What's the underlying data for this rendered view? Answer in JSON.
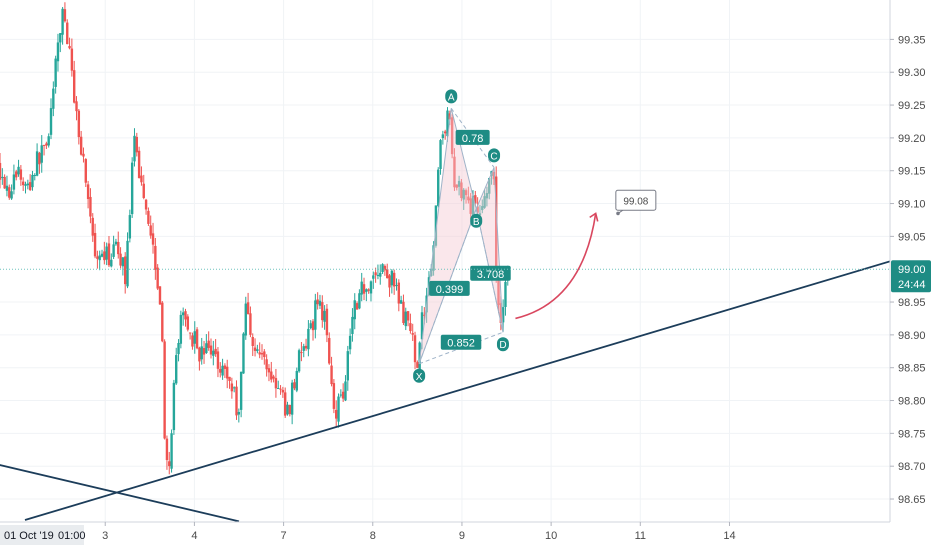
{
  "chart_data": {
    "type": "candlestick",
    "title": "",
    "xlabel": "",
    "ylabel": "",
    "ylim": [
      98.615,
      99.41
    ],
    "y_ticks": [
      "99.35",
      "99.30",
      "99.25",
      "99.20",
      "99.15",
      "99.10",
      "99.05",
      "98.95",
      "98.90",
      "98.85",
      "98.80",
      "98.75",
      "98.70",
      "98.65"
    ],
    "x_ticks": [
      {
        "label": "3",
        "day": 3
      },
      {
        "label": "4",
        "day": 4
      },
      {
        "label": "7",
        "day": 5
      },
      {
        "label": "8",
        "day": 6
      },
      {
        "label": "9",
        "day": 7
      },
      {
        "label": "10",
        "day": 8
      },
      {
        "label": "11",
        "day": 9
      },
      {
        "label": "14",
        "day": 10
      }
    ],
    "xlim_days": [
      1.82,
      11.8
    ],
    "x_start_label": "01 Oct '19",
    "x_start_time": "01:00",
    "last_price": "99.00",
    "countdown": "24:44",
    "current_price_line": 99.0,
    "colors": {
      "up": "#26a69a",
      "down": "#ef5350",
      "trend_line": "#1c3d5a",
      "pattern_line": "#9fb3c8",
      "pattern_fill": "#f3c9d3",
      "arrow": "#d9475f",
      "price_label_bg": "#1e8c84",
      "price_line": "#6fc3bd"
    },
    "path_points": [
      [
        1.82,
        99.16
      ],
      [
        1.95,
        99.12
      ],
      [
        2.05,
        99.15
      ],
      [
        2.15,
        99.12
      ],
      [
        2.25,
        99.16
      ],
      [
        2.38,
        99.2
      ],
      [
        2.45,
        99.28
      ],
      [
        2.55,
        99.4
      ],
      [
        2.62,
        99.33
      ],
      [
        2.72,
        99.22
      ],
      [
        2.82,
        99.13
      ],
      [
        2.92,
        99.0
      ],
      [
        3.05,
        99.02
      ],
      [
        3.18,
        99.03
      ],
      [
        3.25,
        98.99
      ],
      [
        3.35,
        99.19
      ],
      [
        3.45,
        99.12
      ],
      [
        3.55,
        99.05
      ],
      [
        3.65,
        98.95
      ],
      [
        3.7,
        98.72
      ],
      [
        3.75,
        98.68
      ],
      [
        3.82,
        98.88
      ],
      [
        3.9,
        98.93
      ],
      [
        4.0,
        98.9
      ],
      [
        4.1,
        98.87
      ],
      [
        4.2,
        98.88
      ],
      [
        4.35,
        98.85
      ],
      [
        4.45,
        98.82
      ],
      [
        4.52,
        98.78
      ],
      [
        4.6,
        98.95
      ],
      [
        4.7,
        98.88
      ],
      [
        4.82,
        98.86
      ],
      [
        4.95,
        98.82
      ],
      [
        5.08,
        98.78
      ],
      [
        5.18,
        98.86
      ],
      [
        5.3,
        98.89
      ],
      [
        5.42,
        98.96
      ],
      [
        5.52,
        98.9
      ],
      [
        5.6,
        98.78
      ],
      [
        5.7,
        98.82
      ],
      [
        5.8,
        98.94
      ],
      [
        5.9,
        98.97
      ],
      [
        6.05,
        98.99
      ],
      [
        6.12,
        99.0
      ],
      [
        6.25,
        98.98
      ],
      [
        6.35,
        98.94
      ],
      [
        6.45,
        98.9
      ],
      [
        6.52,
        98.86
      ],
      [
        6.62,
        98.96
      ],
      [
        6.72,
        99.05
      ],
      [
        6.78,
        99.19
      ],
      [
        6.87,
        99.24
      ],
      [
        6.95,
        99.13
      ],
      [
        7.05,
        99.12
      ],
      [
        7.12,
        99.1
      ],
      [
        7.2,
        99.09
      ],
      [
        7.3,
        99.12
      ],
      [
        7.38,
        99.14
      ],
      [
        7.42,
        98.96
      ],
      [
        7.46,
        98.92
      ],
      [
        7.52,
        98.99
      ]
    ],
    "pattern_points": [
      {
        "label": "X",
        "day": 6.52,
        "price": 98.856
      },
      {
        "label": "A",
        "day": 6.88,
        "price": 99.245
      },
      {
        "label": "B",
        "day": 7.16,
        "price": 99.092
      },
      {
        "label": "C",
        "day": 7.36,
        "price": 99.155
      },
      {
        "label": "D",
        "day": 7.46,
        "price": 98.904
      }
    ],
    "pattern_ratios": [
      {
        "label": "0.78",
        "day": 7.12,
        "price": 99.2
      },
      {
        "label": "0.399",
        "day": 6.86,
        "price": 98.97
      },
      {
        "label": "3.708",
        "day": 7.32,
        "price": 98.993
      },
      {
        "label": "0.852",
        "day": 6.99,
        "price": 98.888
      }
    ],
    "trend_lines": [
      {
        "from": {
          "day": 2.1,
          "price": 98.618
        },
        "to": {
          "day": 11.8,
          "price": 99.012
        }
      },
      {
        "from": {
          "day": 1.0,
          "price": 98.728
        },
        "to": {
          "day": 4.5,
          "price": 98.616
        }
      }
    ],
    "projection_arrow": {
      "from": {
        "day": 7.6,
        "price": 98.925
      },
      "ctrl": {
        "day": 8.35,
        "price": 98.95
      },
      "to": {
        "day": 8.5,
        "price": 99.085
      }
    },
    "annotation": {
      "text": "99.08",
      "day": 8.95,
      "price": 99.105,
      "anchor": {
        "day": 8.75,
        "price": 99.085
      }
    }
  }
}
